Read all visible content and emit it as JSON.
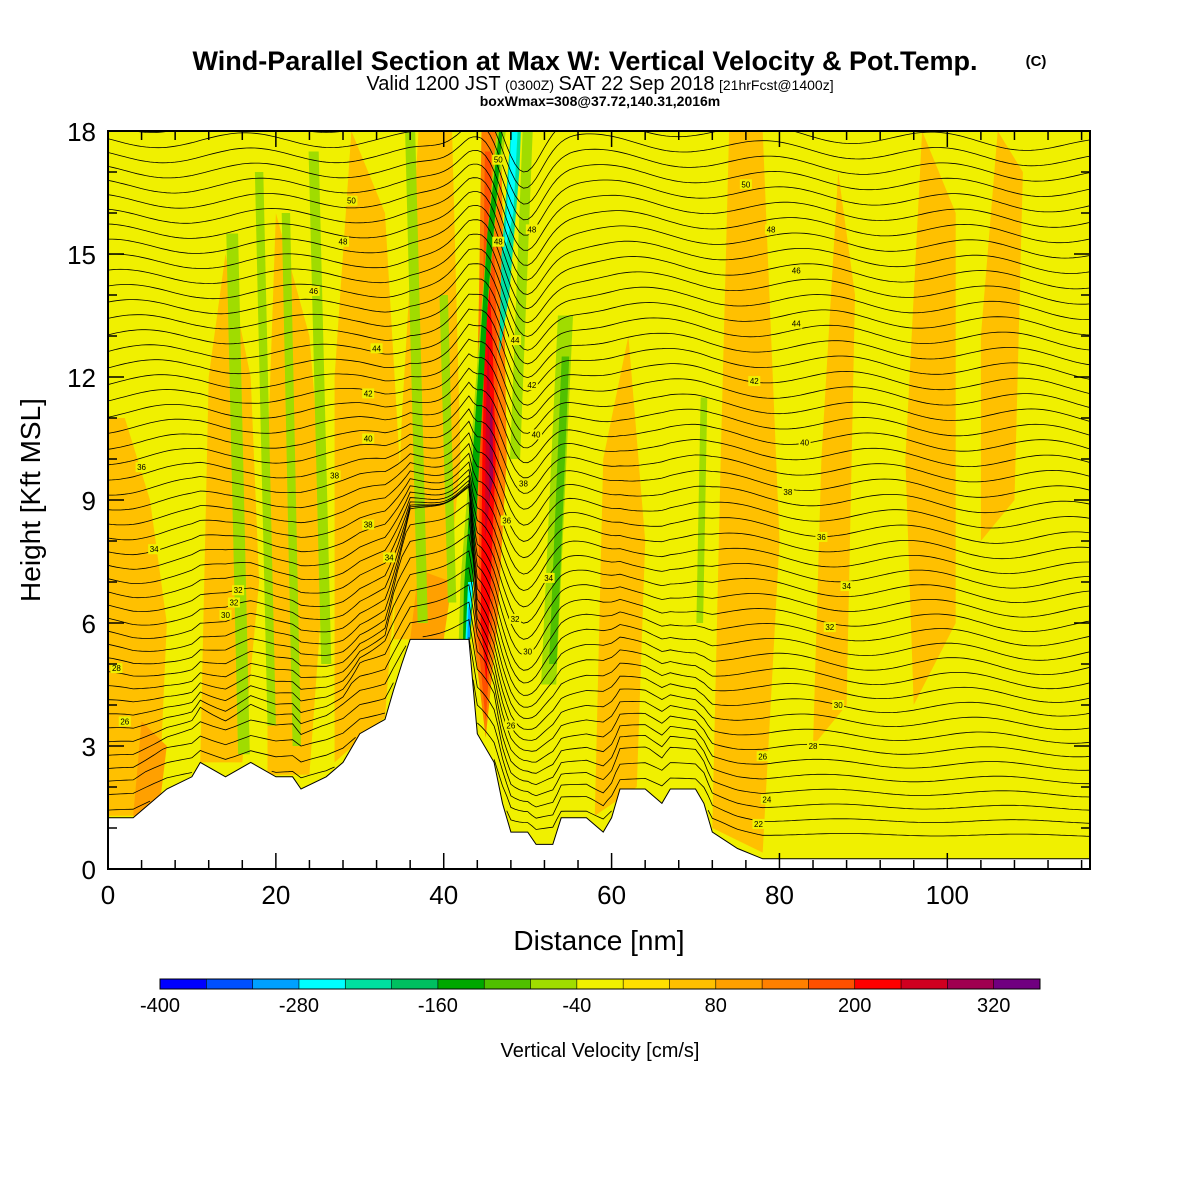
{
  "title": {
    "main": "Wind-Parallel Section at Max W: Vertical Velocity & Pot.Temp.",
    "copyright": "(C)",
    "valid_a": "Valid 1200 JST",
    "valid_b": "(0300Z)",
    "valid_c": "SAT 22 Sep 2018",
    "valid_d": "[21hrFcst@1400z]",
    "box": "boxWmax=308@37.72,140.31,2016m"
  },
  "chart_data": {
    "type": "heatmap",
    "xlabel": "Distance [nm]",
    "ylabel": "Height [Kft MSL]",
    "xlim": [
      0,
      117
    ],
    "ylim": [
      0,
      18
    ],
    "x_ticks": [
      0,
      20,
      40,
      60,
      80,
      100
    ],
    "y_ticks": [
      0,
      3,
      6,
      9,
      12,
      15,
      18
    ],
    "colorbar": {
      "label": "Vertical Velocity [cm/s]",
      "tick_labels": [
        "-400",
        "-280",
        "-160",
        "-40",
        "80",
        "200",
        "320"
      ],
      "bins": [
        -400,
        -360,
        -320,
        -280,
        -240,
        -200,
        -160,
        -120,
        -80,
        -40,
        0,
        40,
        80,
        120,
        160,
        200,
        240,
        280,
        320,
        360
      ],
      "colors": [
        "#0000ff",
        "#0050ff",
        "#00a0ff",
        "#00ffff",
        "#00e0a0",
        "#00c060",
        "#00a800",
        "#50c000",
        "#a0dc00",
        "#f0f000",
        "#ffe000",
        "#ffc000",
        "#ffa000",
        "#ff8000",
        "#ff5000",
        "#ff0000",
        "#d00020",
        "#a00050",
        "#700080"
      ]
    },
    "background_w_color": "#f0f000",
    "updraft_color": "#ffc000",
    "terrain_kft": [
      [
        0,
        1.25
      ],
      [
        3,
        1.25
      ],
      [
        5,
        1.6
      ],
      [
        7,
        1.95
      ],
      [
        10,
        2.25
      ],
      [
        11,
        2.6
      ],
      [
        14,
        2.25
      ],
      [
        17,
        2.6
      ],
      [
        20,
        2.25
      ],
      [
        22,
        2.25
      ],
      [
        23,
        1.95
      ],
      [
        26,
        2.25
      ],
      [
        28,
        2.6
      ],
      [
        30,
        3.3
      ],
      [
        33,
        3.65
      ],
      [
        34,
        4.35
      ],
      [
        35,
        5.0
      ],
      [
        36,
        5.6
      ],
      [
        43,
        5.6
      ],
      [
        44,
        3.3
      ],
      [
        46,
        2.6
      ],
      [
        47,
        1.6
      ],
      [
        48,
        0.9
      ],
      [
        50,
        0.9
      ],
      [
        51,
        0.6
      ],
      [
        53,
        0.6
      ],
      [
        54,
        1.25
      ],
      [
        57,
        1.25
      ],
      [
        59,
        0.9
      ],
      [
        60,
        1.25
      ],
      [
        61,
        1.95
      ],
      [
        64,
        1.95
      ],
      [
        66,
        1.6
      ],
      [
        67,
        1.95
      ],
      [
        70,
        1.95
      ],
      [
        71,
        1.6
      ],
      [
        72,
        0.9
      ],
      [
        75,
        0.5
      ],
      [
        78,
        0.25
      ],
      [
        117,
        0.25
      ]
    ],
    "theta_levels": [
      22,
      24,
      26,
      28,
      30,
      32,
      34,
      36,
      38,
      40,
      42,
      44,
      46,
      48,
      50,
      52
    ],
    "theta_labels": [
      {
        "text": "22",
        "x": 77.5,
        "y": 1.1
      },
      {
        "text": "24",
        "x": 78.5,
        "y": 1.7
      },
      {
        "text": "26",
        "x": 78.0,
        "y": 2.75
      },
      {
        "text": "28",
        "x": 84.0,
        "y": 3.0
      },
      {
        "text": "30",
        "x": 87.0,
        "y": 4.0
      },
      {
        "text": "32",
        "x": 86.0,
        "y": 5.9
      },
      {
        "text": "34",
        "x": 88.0,
        "y": 6.9
      },
      {
        "text": "36",
        "x": 85.0,
        "y": 8.1
      },
      {
        "text": "38",
        "x": 81.0,
        "y": 9.2
      },
      {
        "text": "40",
        "x": 83.0,
        "y": 10.4
      },
      {
        "text": "42",
        "x": 77.0,
        "y": 11.9
      },
      {
        "text": "44",
        "x": 82.0,
        "y": 13.3
      },
      {
        "text": "46",
        "x": 82.0,
        "y": 14.6
      },
      {
        "text": "48",
        "x": 79.0,
        "y": 15.6
      },
      {
        "text": "50",
        "x": 76.0,
        "y": 16.7
      },
      {
        "text": "26",
        "x": 2.0,
        "y": 3.6
      },
      {
        "text": "28",
        "x": 1.0,
        "y": 4.9
      },
      {
        "text": "30",
        "x": 14.0,
        "y": 6.2
      },
      {
        "text": "32",
        "x": 15.5,
        "y": 6.8
      },
      {
        "text": "34",
        "x": 5.5,
        "y": 7.8
      },
      {
        "text": "36",
        "x": 4.0,
        "y": 9.8
      },
      {
        "text": "38",
        "x": 31.0,
        "y": 8.4
      },
      {
        "text": "34",
        "x": 33.5,
        "y": 7.6
      },
      {
        "text": "38",
        "x": 27.0,
        "y": 9.6
      },
      {
        "text": "40",
        "x": 31.0,
        "y": 10.5
      },
      {
        "text": "42",
        "x": 31.0,
        "y": 11.6
      },
      {
        "text": "44",
        "x": 32.0,
        "y": 12.7
      },
      {
        "text": "46",
        "x": 24.5,
        "y": 14.1
      },
      {
        "text": "48",
        "x": 28.0,
        "y": 15.3
      },
      {
        "text": "50",
        "x": 29.0,
        "y": 16.3
      },
      {
        "text": "26",
        "x": 48.0,
        "y": 3.5
      },
      {
        "text": "30",
        "x": 50.0,
        "y": 5.3
      },
      {
        "text": "32",
        "x": 48.5,
        "y": 6.1
      },
      {
        "text": "36",
        "x": 47.5,
        "y": 8.5
      },
      {
        "text": "38",
        "x": 49.5,
        "y": 9.4
      },
      {
        "text": "40",
        "x": 51.0,
        "y": 10.6
      },
      {
        "text": "42",
        "x": 50.5,
        "y": 11.8
      },
      {
        "text": "44",
        "x": 48.5,
        "y": 12.9
      },
      {
        "text": "48",
        "x": 46.5,
        "y": 15.3
      },
      {
        "text": "48",
        "x": 50.5,
        "y": 15.6
      },
      {
        "text": "50",
        "x": 46.5,
        "y": 17.3
      },
      {
        "text": "34",
        "x": 52.5,
        "y": 7.1
      },
      {
        "text": "32",
        "x": 15.0,
        "y": 6.5
      }
    ]
  }
}
